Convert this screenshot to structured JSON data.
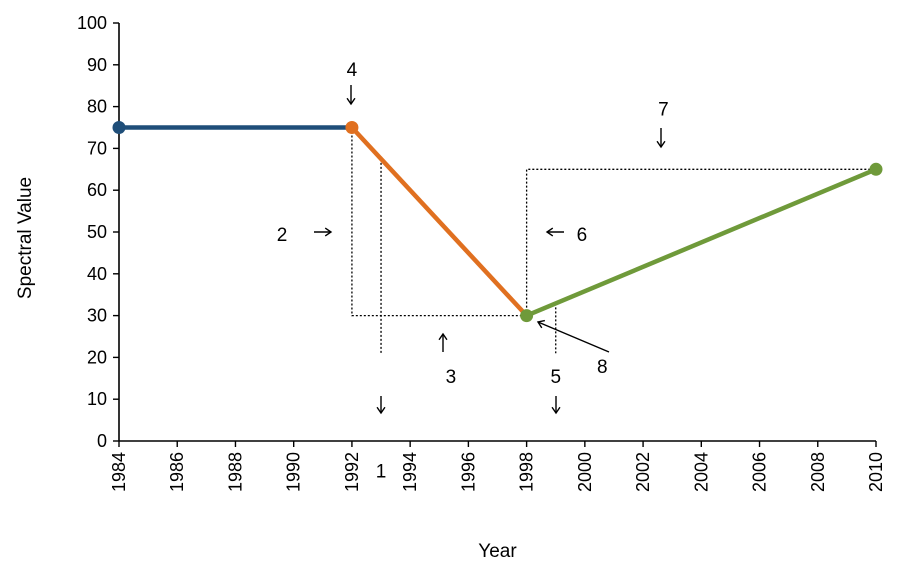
{
  "chart_data": {
    "type": "line",
    "xlabel": "Year",
    "ylabel": "Spectral Value",
    "xlim": [
      1984,
      2010
    ],
    "ylim": [
      0,
      100
    ],
    "x_ticks": [
      1984,
      1986,
      1988,
      1990,
      1992,
      1994,
      1996,
      1998,
      2000,
      2002,
      2004,
      2006,
      2008,
      2010
    ],
    "y_ticks": [
      0,
      10,
      20,
      30,
      40,
      50,
      60,
      70,
      80,
      90,
      100
    ],
    "grid": false,
    "legend": "none",
    "series": [
      {
        "color": "#1f4e79",
        "x": [
          1984,
          1992
        ],
        "y": [
          75,
          75
        ]
      },
      {
        "color": "#e07020",
        "x": [
          1992,
          1998
        ],
        "y": [
          75,
          30
        ]
      },
      {
        "color": "#6f9a3a",
        "x": [
          1998,
          2010
        ],
        "y": [
          30,
          65
        ]
      }
    ],
    "annotations": [
      {
        "label": "1",
        "x": 1993,
        "y": -7
      },
      {
        "label": "2",
        "x": 1989.6,
        "y": 49.5
      },
      {
        "label": "3",
        "x": 1995.4,
        "y": 15.5
      },
      {
        "label": "4",
        "x": 1992,
        "y": 89
      },
      {
        "label": "5",
        "x": 1999,
        "y": 15.5
      },
      {
        "label": "6",
        "x": 1999.9,
        "y": 49.5
      },
      {
        "label": "7",
        "x": 2002.7,
        "y": 79.5
      },
      {
        "label": "8",
        "x": 2000.6,
        "y": 18
      }
    ]
  }
}
